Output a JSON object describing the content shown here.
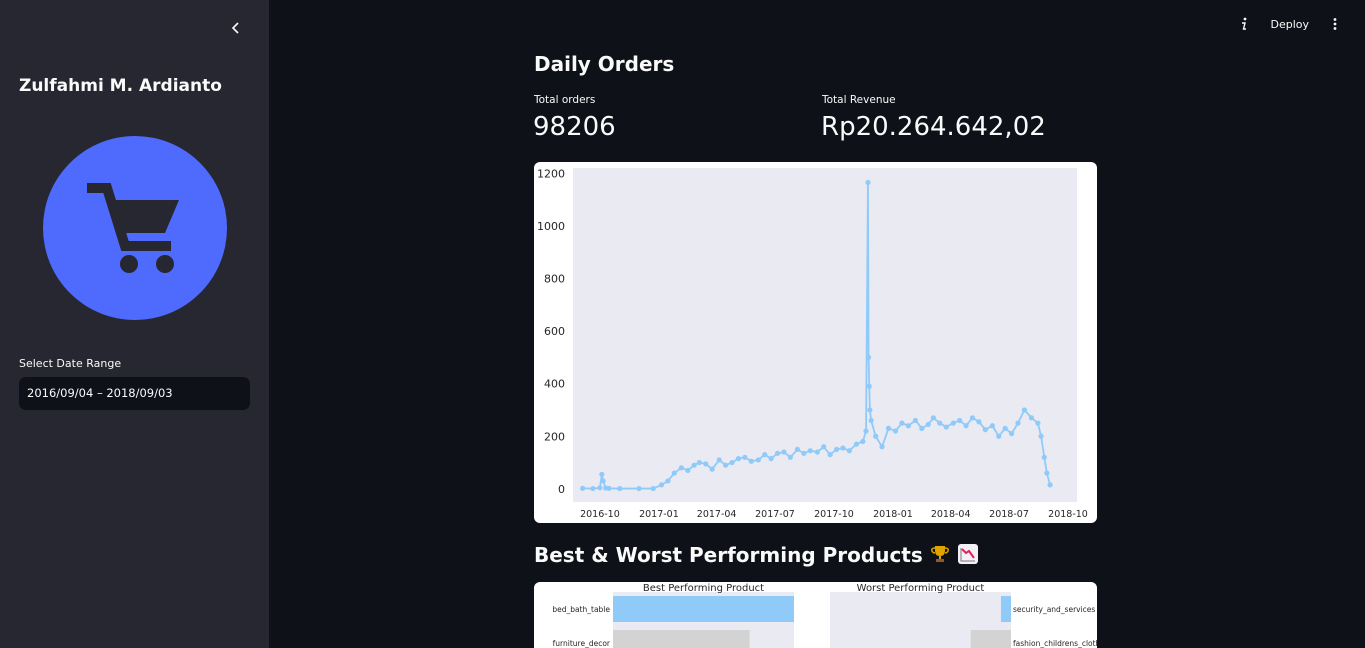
{
  "sidebar": {
    "title": "Zulfahmi M. Ardianto",
    "date_label": "Select Date Range",
    "date_value": "2016/09/04 – 2018/09/03",
    "logo_icon": "shopping-cart-icon",
    "collapse_icon": "chevron-left-icon"
  },
  "header": {
    "deploy_label": "Deploy",
    "info_icon": "info-icon",
    "menu_icon": "kebab-menu-icon"
  },
  "main": {
    "daily_orders_title": "Daily Orders",
    "total_orders_label": "Total orders",
    "total_orders_value": "98206",
    "total_revenue_label": "Total Revenue",
    "total_revenue_value": "Rp20.264.642,02",
    "performing_title": "Best & Worst Performing Products",
    "performing_icons": [
      "trophy-icon",
      "chart-decreasing-icon"
    ]
  },
  "chart_data": [
    {
      "type": "line",
      "line_color": "#90caf9",
      "background": "#eaeaf2",
      "x_ticks": [
        "2016-10",
        "2017-01",
        "2017-04",
        "2017-07",
        "2017-10",
        "2018-01",
        "2018-04",
        "2018-07",
        "2018-10"
      ],
      "y_ticks": [
        0,
        200,
        400,
        600,
        800,
        1000,
        1200
      ],
      "ylim": [
        -50,
        1220
      ],
      "xlim": [
        "2016-08-20",
        "2018-10-15"
      ],
      "grid": false,
      "series": [
        {
          "x": [
            "2016-09-04",
            "2016-09-20",
            "2016-10-01",
            "2016-10-04",
            "2016-10-06",
            "2016-10-10",
            "2016-10-15",
            "2016-11-01",
            "2016-12-01",
            "2016-12-23",
            "2017-01-05",
            "2017-01-15",
            "2017-01-25",
            "2017-02-05",
            "2017-02-15",
            "2017-02-25",
            "2017-03-05",
            "2017-03-15",
            "2017-03-25",
            "2017-04-05",
            "2017-04-15",
            "2017-04-25",
            "2017-05-05",
            "2017-05-15",
            "2017-05-25",
            "2017-06-05",
            "2017-06-15",
            "2017-06-25",
            "2017-07-05",
            "2017-07-15",
            "2017-07-25",
            "2017-08-05",
            "2017-08-15",
            "2017-08-25",
            "2017-09-05",
            "2017-09-15",
            "2017-09-25",
            "2017-10-05",
            "2017-10-15",
            "2017-10-25",
            "2017-11-05",
            "2017-11-15",
            "2017-11-20",
            "2017-11-23",
            "2017-11-24",
            "2017-11-25",
            "2017-11-26",
            "2017-11-28",
            "2017-12-05",
            "2017-12-15",
            "2017-12-25",
            "2018-01-05",
            "2018-01-15",
            "2018-01-25",
            "2018-02-05",
            "2018-02-15",
            "2018-02-25",
            "2018-03-05",
            "2018-03-15",
            "2018-03-25",
            "2018-04-05",
            "2018-04-15",
            "2018-04-25",
            "2018-05-05",
            "2018-05-15",
            "2018-05-25",
            "2018-06-05",
            "2018-06-15",
            "2018-06-25",
            "2018-07-05",
            "2018-07-15",
            "2018-07-25",
            "2018-08-05",
            "2018-08-15",
            "2018-08-20",
            "2018-08-25",
            "2018-08-29",
            "2018-09-03"
          ],
          "y": [
            2,
            1,
            4,
            55,
            30,
            3,
            2,
            1,
            1,
            1,
            15,
            30,
            60,
            80,
            70,
            90,
            100,
            95,
            75,
            110,
            90,
            100,
            115,
            120,
            105,
            110,
            130,
            115,
            135,
            140,
            120,
            150,
            135,
            145,
            140,
            160,
            130,
            150,
            155,
            145,
            170,
            180,
            220,
            1165,
            500,
            390,
            300,
            260,
            200,
            160,
            230,
            220,
            250,
            240,
            260,
            230,
            245,
            270,
            250,
            235,
            250,
            260,
            240,
            270,
            255,
            225,
            240,
            200,
            230,
            210,
            250,
            300,
            270,
            250,
            200,
            120,
            60,
            15
          ]
        }
      ]
    },
    {
      "type": "bar",
      "title": "Best Performing Product",
      "categories": [
        "bed_bath_table",
        "furniture_decor"
      ],
      "values": [
        11000,
        8300
      ],
      "colors": [
        "#90caf9",
        "#d3d3d3"
      ],
      "xlim": [
        0,
        11000
      ]
    },
    {
      "type": "bar",
      "title": "Worst Performing Product",
      "categories": [
        "security_and_services",
        "fashion_childrens_clothes"
      ],
      "values": [
        2,
        8
      ],
      "colors": [
        "#90caf9",
        "#d3d3d3"
      ],
      "xlim": [
        0,
        36
      ],
      "inverted": true
    }
  ]
}
